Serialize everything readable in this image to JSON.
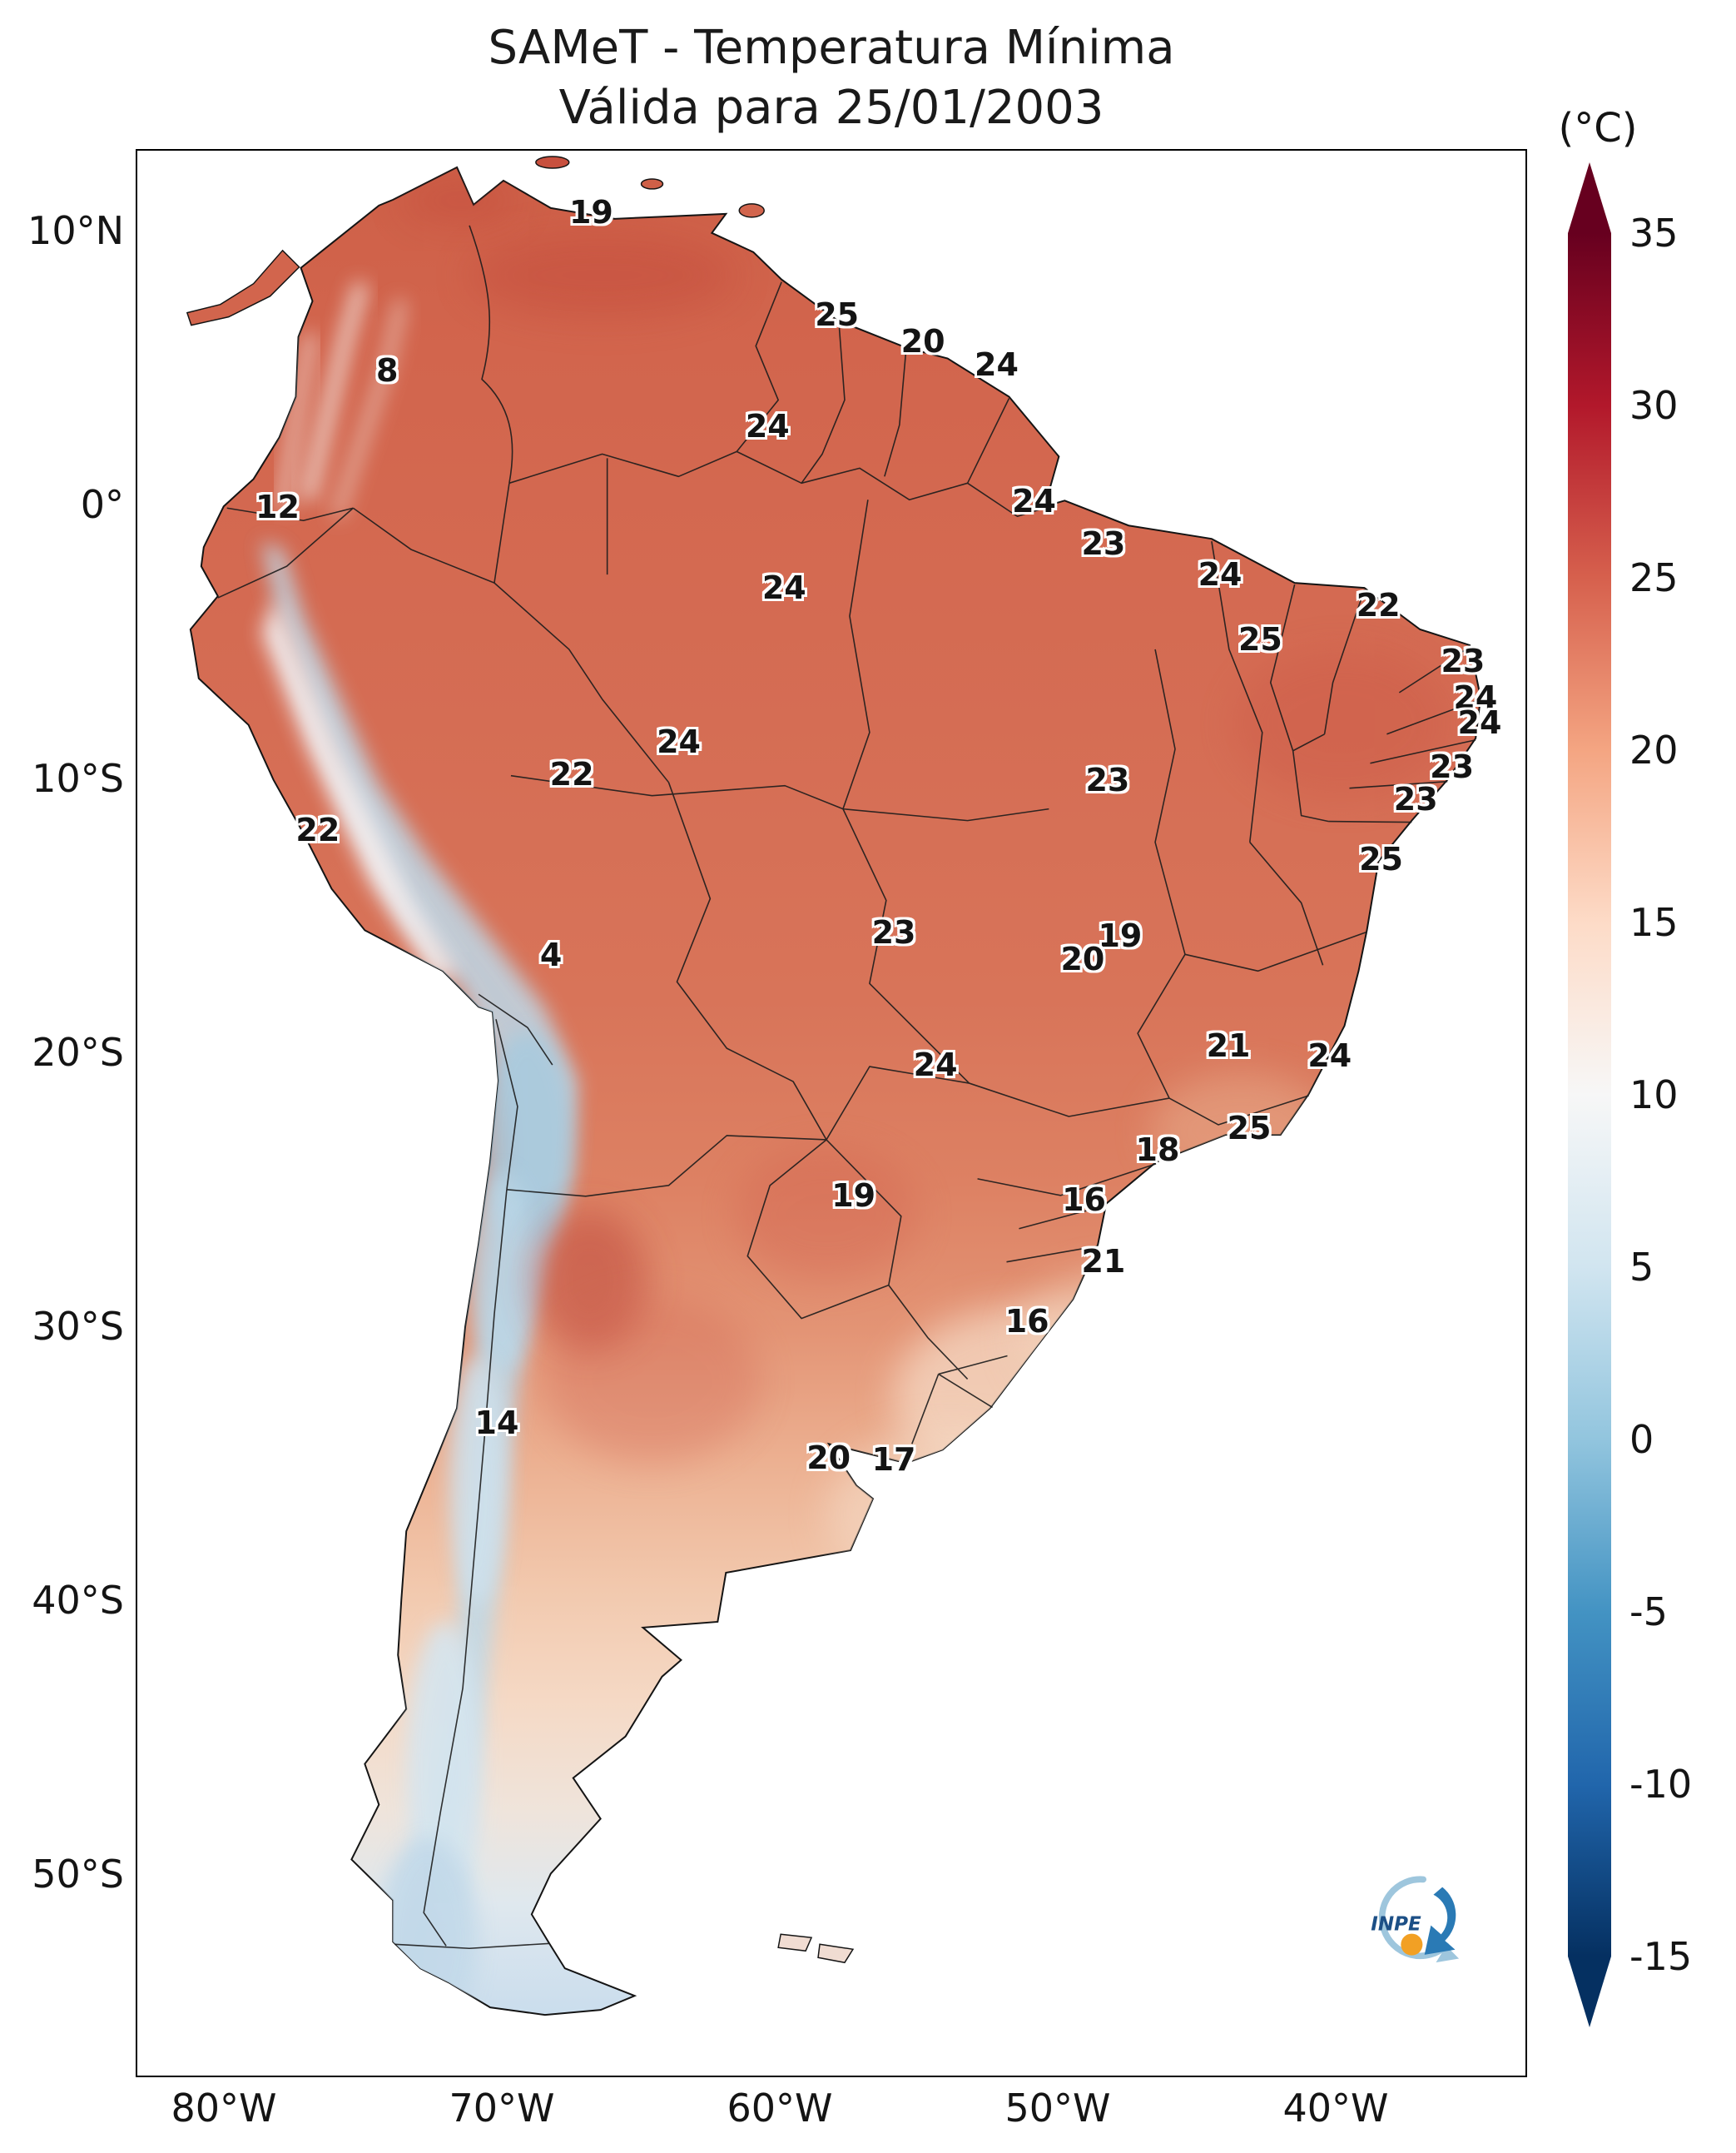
{
  "chart_data": {
    "type": "heatmap",
    "title": "SAMeT - Temperatura Mínima",
    "subtitle": "Válida para 25/01/2003",
    "unit": "°C",
    "colorbar_range": [
      -15,
      35
    ],
    "colorbar_ticks": [
      35,
      30,
      25,
      20,
      15,
      10,
      5,
      0,
      -5,
      -10,
      -15
    ],
    "colormap": "RdBu_r",
    "colormap_stops": [
      "#053061",
      "#2166ac",
      "#4393c3",
      "#92c5de",
      "#d1e5f0",
      "#f7f7f7",
      "#fddbc7",
      "#f4a582",
      "#d6604d",
      "#b2182b",
      "#67001f"
    ],
    "x_axis": [
      "80°W",
      "70°W",
      "60°W",
      "50°W",
      "40°W"
    ],
    "y_axis": [
      "10°N",
      "0°",
      "10°S",
      "20°S",
      "30°S",
      "40°S",
      "50°S"
    ],
    "legend_position": "right",
    "points": [
      {
        "value": "19",
        "x_pct": 32.7,
        "y_pct": 3.2
      },
      {
        "value": "25",
        "x_pct": 50.4,
        "y_pct": 8.5
      },
      {
        "value": "20",
        "x_pct": 56.6,
        "y_pct": 9.9
      },
      {
        "value": "24",
        "x_pct": 61.9,
        "y_pct": 11.1
      },
      {
        "value": "8",
        "x_pct": 18.0,
        "y_pct": 11.4
      },
      {
        "value": "24",
        "x_pct": 45.4,
        "y_pct": 14.3
      },
      {
        "value": "12",
        "x_pct": 10.1,
        "y_pct": 18.5
      },
      {
        "value": "24",
        "x_pct": 64.6,
        "y_pct": 18.2
      },
      {
        "value": "23",
        "x_pct": 69.6,
        "y_pct": 20.4
      },
      {
        "value": "24",
        "x_pct": 78.0,
        "y_pct": 22.0
      },
      {
        "value": "24",
        "x_pct": 46.6,
        "y_pct": 22.7
      },
      {
        "value": "22",
        "x_pct": 89.4,
        "y_pct": 23.6
      },
      {
        "value": "25",
        "x_pct": 80.9,
        "y_pct": 25.4
      },
      {
        "value": "23",
        "x_pct": 95.5,
        "y_pct": 26.5
      },
      {
        "value": "24",
        "x_pct": 96.4,
        "y_pct": 28.4
      },
      {
        "value": "24",
        "x_pct": 96.7,
        "y_pct": 29.7
      },
      {
        "value": "24",
        "x_pct": 39.0,
        "y_pct": 30.7
      },
      {
        "value": "23",
        "x_pct": 94.7,
        "y_pct": 32.0
      },
      {
        "value": "22",
        "x_pct": 31.3,
        "y_pct": 32.4
      },
      {
        "value": "23",
        "x_pct": 69.9,
        "y_pct": 32.7
      },
      {
        "value": "23",
        "x_pct": 92.1,
        "y_pct": 33.7
      },
      {
        "value": "22",
        "x_pct": 13.0,
        "y_pct": 35.3
      },
      {
        "value": "25",
        "x_pct": 89.6,
        "y_pct": 36.8
      },
      {
        "value": "23",
        "x_pct": 54.5,
        "y_pct": 40.6
      },
      {
        "value": "19",
        "x_pct": 70.8,
        "y_pct": 40.8
      },
      {
        "value": "4",
        "x_pct": 29.8,
        "y_pct": 41.8
      },
      {
        "value": "20",
        "x_pct": 68.1,
        "y_pct": 42.0
      },
      {
        "value": "21",
        "x_pct": 78.6,
        "y_pct": 46.5
      },
      {
        "value": "24",
        "x_pct": 57.5,
        "y_pct": 47.5
      },
      {
        "value": "24",
        "x_pct": 85.9,
        "y_pct": 47.0
      },
      {
        "value": "25",
        "x_pct": 80.1,
        "y_pct": 50.8
      },
      {
        "value": "18",
        "x_pct": 73.5,
        "y_pct": 51.9
      },
      {
        "value": "19",
        "x_pct": 51.6,
        "y_pct": 54.3
      },
      {
        "value": "16",
        "x_pct": 68.2,
        "y_pct": 54.5
      },
      {
        "value": "21",
        "x_pct": 69.6,
        "y_pct": 57.7
      },
      {
        "value": "16",
        "x_pct": 64.1,
        "y_pct": 60.8
      },
      {
        "value": "14",
        "x_pct": 25.9,
        "y_pct": 66.1
      },
      {
        "value": "20",
        "x_pct": 49.8,
        "y_pct": 67.9
      },
      {
        "value": "17",
        "x_pct": 54.5,
        "y_pct": 68.0
      }
    ]
  },
  "colorbar": {
    "unit": "(°C)"
  },
  "logo": {
    "text": "INPE"
  }
}
